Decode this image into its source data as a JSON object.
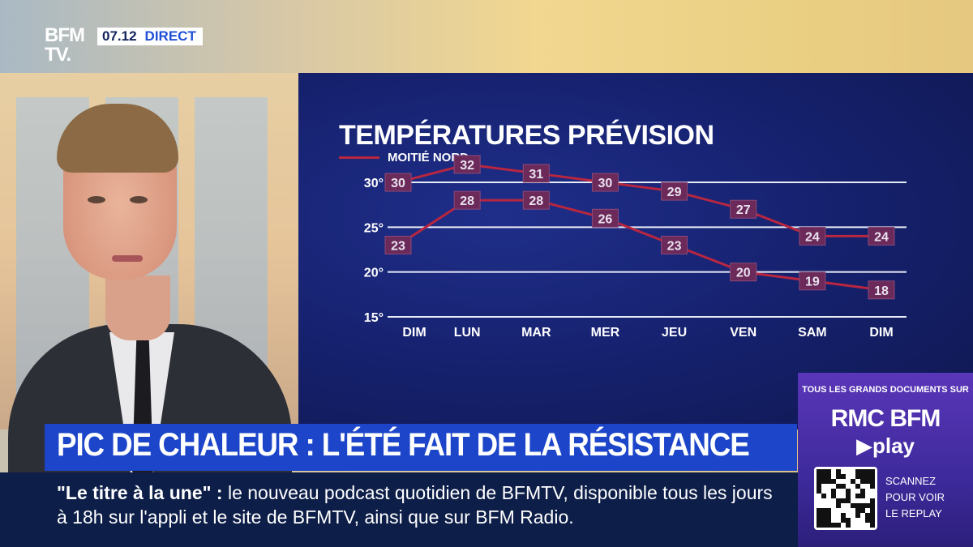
{
  "broadcast": {
    "logo_line1": "BFM",
    "logo_line2": "TV.",
    "time": "07.12",
    "live_label": "DIRECT"
  },
  "chart_data": {
    "type": "line",
    "title": "TEMPÉRATURES PRÉVISION",
    "legend_label": "MOITIÉ NORD",
    "categories": [
      "DIM",
      "LUN",
      "MAR",
      "MER",
      "JEU",
      "VEN",
      "SAM",
      "DIM"
    ],
    "series": [
      {
        "name": "MOITIÉ NORD",
        "values": [
          30,
          32,
          31,
          30,
          29,
          27,
          24,
          24
        ]
      },
      {
        "name": "",
        "values": [
          23,
          28,
          28,
          26,
          23,
          20,
          19,
          18
        ]
      }
    ],
    "y_ticks": [
      "15°",
      "20°",
      "25°",
      "30°"
    ],
    "y_tick_values": [
      15,
      20,
      25,
      30
    ],
    "ylim": [
      15,
      30
    ],
    "grid": true,
    "legend_position": "top-left",
    "line_color": "#b8263f",
    "label_box_color": "#6b2a5a"
  },
  "lower_third": {
    "headline": "PIC DE CHALEUR : L'ÉTÉ FAIT DE LA RÉSISTANCE",
    "ticker_highlight": "\"Le titre à la une\"  :",
    "ticker_text": " le nouveau podcast quotidien de BFMTV, disponible tous les jours à 18h sur l'appli et le site de BFMTV, ainsi que sur BFM Radio."
  },
  "promo": {
    "top_text": "TOUS LES GRANDS DOCUMENTS SUR",
    "brand": "RMC BFM",
    "play": "▶play",
    "scan_line1": "SCANNEZ",
    "scan_line2": "POUR VOIR",
    "scan_line3": "LE REPLAY"
  }
}
